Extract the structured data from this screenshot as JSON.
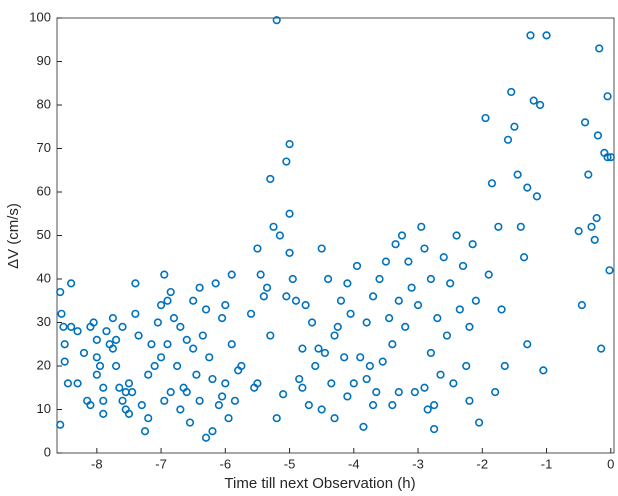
{
  "chart_data": {
    "type": "scatter",
    "x_label": "Time till next Observation (h)",
    "y_label": "ΔV (cm/s)",
    "color": "#0072BD",
    "xlim": [
      -8.62,
      0.05
    ],
    "ylim": [
      0,
      100
    ],
    "xticks": [
      -8,
      -7,
      -6,
      -5,
      -4,
      -3,
      -2,
      -1,
      0
    ],
    "yticks": [
      0,
      10,
      20,
      30,
      40,
      50,
      60,
      70,
      80,
      90,
      100
    ],
    "grid": false,
    "x": [
      -8.57,
      -8.55,
      -8.52,
      -8.5,
      -8.5,
      -8.45,
      -8.4,
      -8.4,
      -8.3,
      -8.3,
      -8.2,
      -8.15,
      -8.1,
      -8.1,
      -8.05,
      -8.0,
      -8.0,
      -8.0,
      -7.95,
      -7.9,
      -7.9,
      -8.57,
      -7.85,
      -7.8,
      -7.75,
      -7.7,
      -7.7,
      -7.65,
      -7.6,
      -7.6,
      -7.55,
      -7.5,
      -7.5,
      -7.45,
      -7.4,
      -7.4,
      -7.35,
      -7.3,
      -7.25,
      -7.2,
      -7.2,
      -7.15,
      -7.1,
      -7.05,
      -7.0,
      -7.0,
      -6.95,
      -6.9,
      -6.9,
      -6.85,
      -7.9,
      -7.75,
      -7.55,
      -6.95,
      -6.85,
      -6.8,
      -6.75,
      -6.7,
      -6.65,
      -6.6,
      -6.55,
      -6.5,
      -6.45,
      -6.4,
      -6.4,
      -6.35,
      -6.3,
      -6.25,
      -6.2,
      -6.2,
      -6.15,
      -6.1,
      -6.05,
      -6.0,
      -6.0,
      -5.95,
      -5.9,
      -5.9,
      -5.85,
      -5.8,
      -5.75,
      -6.5,
      -6.6,
      -6.3,
      -6.05,
      -6.7,
      -5.6,
      -5.55,
      -5.5,
      -5.5,
      -5.45,
      -5.4,
      -5.35,
      -5.3,
      -5.3,
      -5.25,
      -5.2,
      -5.2,
      -5.15,
      -5.1,
      -5.05,
      -5.05,
      -5.0,
      -5.0,
      -5.0,
      -4.95,
      -4.9,
      -4.85,
      -4.8,
      -4.8,
      -4.75,
      -4.7,
      -4.65,
      -4.6,
      -4.55,
      -4.5,
      -4.5,
      -4.45,
      -4.4,
      -4.35,
      -4.3,
      -4.3,
      -4.25,
      -4.2,
      -4.15,
      -4.1,
      -4.1,
      -4.05,
      -4.0,
      -3.95,
      -3.9,
      -3.85,
      -3.8,
      -3.8,
      -3.75,
      -3.7,
      -3.7,
      -3.65,
      -3.6,
      -3.55,
      -3.5,
      -3.45,
      -3.4,
      -3.4,
      -3.35,
      -3.3,
      -3.3,
      -3.25,
      -3.2,
      -3.15,
      -3.1,
      -3.05,
      -3.0,
      -2.95,
      -2.9,
      -2.9,
      -2.85,
      -2.8,
      -2.8,
      -2.75,
      -2.75,
      -2.7,
      -2.65,
      -2.6,
      -2.55,
      -2.5,
      -2.45,
      -2.4,
      -2.35,
      -2.3,
      -2.25,
      -2.2,
      -2.2,
      -2.15,
      -2.1,
      -2.05,
      -1.95,
      -1.9,
      -1.85,
      -1.8,
      -1.75,
      -1.7,
      -1.65,
      -1.6,
      -1.55,
      -1.5,
      -1.45,
      -1.4,
      -1.35,
      -1.3,
      -1.3,
      -1.25,
      -1.2,
      -1.15,
      -1.1,
      -1.05,
      -1.0,
      -0.5,
      -0.45,
      -0.4,
      -0.35,
      -0.3,
      -0.25,
      -0.22,
      -0.2,
      -0.18,
      -0.15,
      -0.1,
      -0.05,
      -0.02,
      0.0,
      -0.05
    ],
    "values": [
      37,
      32,
      29,
      25,
      21,
      16,
      39,
      29,
      28,
      16,
      23,
      12,
      29,
      11,
      30,
      26,
      22,
      18,
      20,
      15,
      9,
      6.5,
      28,
      25,
      31,
      26,
      20,
      15,
      12,
      29,
      14,
      16,
      9,
      14,
      39,
      32,
      27,
      11,
      5,
      8,
      18,
      25,
      20,
      30,
      34,
      22,
      12,
      35,
      25,
      14,
      12,
      24,
      10,
      41,
      37,
      31,
      20,
      10,
      15,
      26,
      7,
      35,
      18,
      12,
      38,
      27,
      3.5,
      22,
      17,
      5,
      39,
      11,
      31,
      16,
      34,
      8,
      25,
      41,
      12,
      19,
      20,
      24,
      14,
      33,
      13,
      29,
      32,
      15,
      47,
      16,
      41,
      36,
      38,
      63,
      27,
      52,
      99.5,
      8,
      50,
      13.5,
      67,
      36,
      71,
      55,
      46,
      40,
      35,
      17,
      24,
      15,
      34,
      11,
      30,
      20,
      24,
      47,
      10,
      23,
      40,
      16,
      27,
      8,
      29,
      35,
      22,
      13,
      39,
      32,
      16,
      43,
      22,
      6,
      17,
      30,
      20,
      11,
      36,
      14,
      40,
      21,
      44,
      31,
      25,
      11,
      48,
      35,
      14,
      50,
      29,
      44,
      38,
      14,
      34,
      52,
      15,
      47,
      10,
      23,
      40,
      11,
      5.5,
      31,
      18,
      45,
      27,
      39,
      16,
      50,
      33,
      43,
      20,
      12,
      29,
      48,
      35,
      7,
      77,
      41,
      62,
      14,
      52,
      33,
      20,
      72,
      83,
      75,
      64,
      52,
      45,
      61,
      25,
      96,
      81,
      59,
      80,
      19,
      96,
      51,
      34,
      76,
      64,
      52,
      49,
      54,
      73,
      93,
      24,
      69,
      82,
      42,
      68,
      68
    ]
  }
}
